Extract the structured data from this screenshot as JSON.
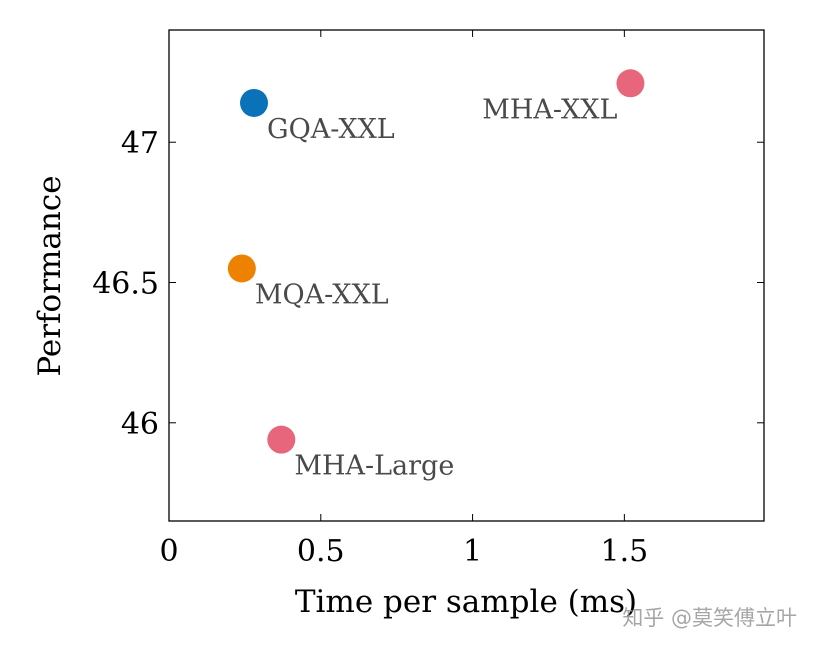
{
  "chart_data": {
    "type": "scatter",
    "title": "",
    "xlabel": "Time per sample (ms)",
    "ylabel": "Performance",
    "xlim": [
      0,
      1.96
    ],
    "ylim": [
      45.65,
      47.4
    ],
    "xticks": [
      0,
      0.5,
      1,
      1.5
    ],
    "xtick_labels": [
      "0",
      "0.5",
      "1",
      "1.5"
    ],
    "yticks": [
      46,
      46.5,
      47
    ],
    "ytick_labels": [
      "46",
      "46.5",
      "47"
    ],
    "grid": false,
    "points": [
      {
        "label": "GQA-XXL",
        "x": 0.28,
        "y": 47.14,
        "color": "#0a72b8",
        "label_pos": "below-right"
      },
      {
        "label": "MHA-XXL",
        "x": 1.52,
        "y": 47.21,
        "color": "#e8667b",
        "label_pos": "below-left"
      },
      {
        "label": "MQA-XXL",
        "x": 0.24,
        "y": 46.55,
        "color": "#ee8200",
        "label_pos": "below-right"
      },
      {
        "label": "MHA-Large",
        "x": 0.37,
        "y": 45.94,
        "color": "#e8667b",
        "label_pos": "below-right"
      }
    ]
  },
  "watermark": "知乎 @莫笑傅立叶"
}
